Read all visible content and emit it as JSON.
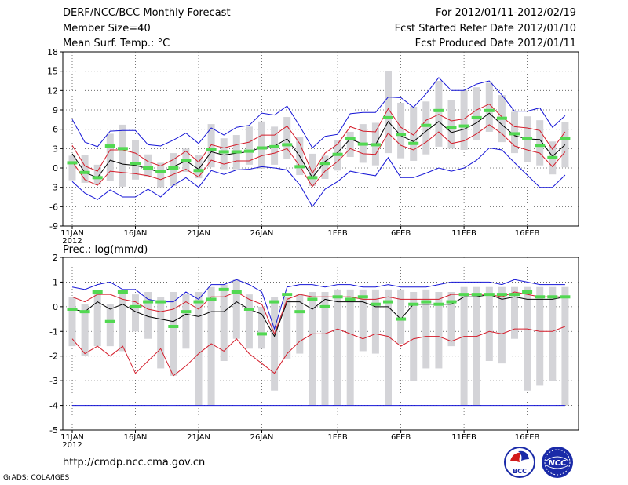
{
  "header": {
    "title": "DERF/NCC/BCC Monthly Forecast",
    "member": "Member Size=40",
    "variable": "Mean Surf. Temp.: °C",
    "period": "For 2012/01/11-2012/02/19",
    "started": "Fcst Started Refer Date 2012/01/10",
    "produced": "Fcst Produced Date 2012/01/11"
  },
  "footer": {
    "url": "http://cmdp.ncc.cma.gov.cn",
    "credit": "GrADS: COLA/IGES",
    "logo_bcc": "BCC",
    "logo_ncc": "NCC"
  },
  "colors": {
    "envelope": "#1515d6",
    "spread": "#d41c2a",
    "mean": "#000000",
    "median": "#52d852",
    "range_bar": "#d4d4d8",
    "grid": "#555555"
  },
  "chart_data": [
    {
      "type": "boxplot-ensemble",
      "label": "Mean Surf. Temp.: °C",
      "ylim": [
        -9,
        18
      ],
      "yticks": [
        -9,
        -6,
        -3,
        0,
        3,
        6,
        9,
        12,
        15,
        18
      ],
      "xticks": [
        {
          "day": 1,
          "label": "11JAN",
          "sub": "2012"
        },
        {
          "day": 6,
          "label": "16JAN"
        },
        {
          "day": 11,
          "label": "21JAN"
        },
        {
          "day": 16,
          "label": "26JAN"
        },
        {
          "day": 22,
          "label": "1FEB"
        },
        {
          "day": 27,
          "label": "6FEB"
        },
        {
          "day": 32,
          "label": "11FEB"
        },
        {
          "day": 37,
          "label": "16FEB"
        }
      ],
      "days": [
        1,
        2,
        3,
        4,
        5,
        6,
        7,
        8,
        9,
        10,
        11,
        12,
        13,
        14,
        15,
        16,
        17,
        18,
        19,
        20,
        21,
        22,
        23,
        24,
        25,
        26,
        27,
        28,
        29,
        30,
        31,
        32,
        33,
        34,
        35,
        36,
        37,
        38,
        39,
        40
      ],
      "series": [
        {
          "name": "max",
          "values": [
            7.5,
            4.0,
            3.3,
            5.7,
            5.8,
            5.8,
            3.6,
            3.4,
            4.3,
            5.4,
            3.8,
            6.2,
            5.1,
            6.3,
            6.6,
            8.5,
            8.2,
            9.6,
            6.5,
            3.1,
            4.9,
            5.2,
            8.4,
            8.6,
            8.6,
            11.0,
            10.9,
            9.4,
            11.5,
            14.0,
            12.0,
            12.0,
            13.0,
            13.5,
            11.3,
            8.8,
            8.8,
            9.3,
            6.3,
            8.1
          ]
        },
        {
          "name": "upper",
          "values": [
            3.5,
            0.3,
            -0.5,
            2.8,
            2.8,
            2.3,
            1.0,
            0.3,
            1.3,
            2.6,
            0.9,
            3.6,
            3.1,
            3.6,
            4.0,
            5.1,
            5.1,
            6.5,
            3.8,
            -0.8,
            2.3,
            3.7,
            6.4,
            5.7,
            5.6,
            9.2,
            6.3,
            5.1,
            7.4,
            8.3,
            7.3,
            7.6,
            9.0,
            9.9,
            7.9,
            6.4,
            6.2,
            5.8,
            2.9,
            5.6
          ]
        },
        {
          "name": "mean",
          "values": [
            2.2,
            -0.7,
            -1.5,
            1.2,
            0.6,
            0.4,
            -0.1,
            -0.7,
            0.2,
            1.1,
            -0.2,
            2.5,
            2.0,
            2.3,
            2.5,
            3.2,
            3.4,
            4.5,
            1.8,
            -1.5,
            1.0,
            2.4,
            4.5,
            3.7,
            3.6,
            7.2,
            5.0,
            4.1,
            5.7,
            7.2,
            5.5,
            6.0,
            7.0,
            8.5,
            6.7,
            5.0,
            4.5,
            4.4,
            1.8,
            3.6
          ]
        },
        {
          "name": "lower",
          "values": [
            1.0,
            -1.8,
            -2.7,
            -0.5,
            -0.7,
            -0.9,
            -1.2,
            -1.8,
            -1.0,
            -0.2,
            -1.4,
            1.2,
            0.6,
            1.1,
            1.1,
            1.9,
            2.3,
            3.0,
            0.3,
            -2.9,
            -0.5,
            1.0,
            3.0,
            2.2,
            2.1,
            5.4,
            3.5,
            2.8,
            4.0,
            5.6,
            3.8,
            4.2,
            5.3,
            6.7,
            5.3,
            3.4,
            2.8,
            2.3,
            0.2,
            2.5
          ]
        },
        {
          "name": "min",
          "values": [
            -2.1,
            -3.9,
            -4.9,
            -3.4,
            -4.5,
            -4.5,
            -3.3,
            -4.5,
            -2.7,
            -1.5,
            -3.0,
            -0.4,
            -1.0,
            -0.3,
            -0.2,
            0.2,
            0.0,
            -0.3,
            -2.6,
            -6.0,
            -3.3,
            -2.1,
            -0.5,
            -0.9,
            -1.2,
            1.6,
            -1.5,
            -1.5,
            -0.8,
            0.0,
            -0.5,
            0.0,
            1.2,
            3.1,
            2.8,
            0.8,
            -1.1,
            -3.0,
            -3.0,
            -1.1
          ]
        },
        {
          "name": "median",
          "values": [
            0.8,
            -0.7,
            -1.5,
            3.4,
            3.0,
            0.7,
            0.0,
            -0.6,
            0.0,
            1.1,
            -0.4,
            2.8,
            2.5,
            2.5,
            2.6,
            3.1,
            3.3,
            3.6,
            0.2,
            -1.5,
            0.7,
            2.1,
            4.5,
            3.7,
            3.6,
            7.8,
            5.2,
            3.8,
            6.6,
            8.9,
            6.3,
            6.5,
            7.8,
            8.9,
            7.7,
            5.3,
            4.6,
            3.5,
            1.6,
            4.6
          ]
        },
        {
          "name": "bar_top",
          "values": [
            1.9,
            2.0,
            0.5,
            5.3,
            6.7,
            4.3,
            2.1,
            0.8,
            2.3,
            3.0,
            2.0,
            6.8,
            4.6,
            5.1,
            6.4,
            7.2,
            6.4,
            7.9,
            4.8,
            2.2,
            1.9,
            4.3,
            5.6,
            6.8,
            7.0,
            15.0,
            10.1,
            9.5,
            10.3,
            13.5,
            10.5,
            12.0,
            12.5,
            13.2,
            11.3,
            8.7,
            8.0,
            7.4,
            4.1,
            7.1
          ]
        },
        {
          "name": "bar_bottom",
          "values": [
            -1.9,
            -2.3,
            -2.6,
            -2.0,
            -2.9,
            -1.8,
            -1.3,
            -3.0,
            -2.8,
            -0.6,
            -1.6,
            0.1,
            -0.2,
            -0.2,
            0.5,
            -0.1,
            0.5,
            1.4,
            -1.1,
            -2.8,
            -1.7,
            -0.4,
            1.7,
            0.8,
            0.4,
            2.3,
            1.5,
            1.1,
            2.1,
            3.3,
            3.0,
            2.8,
            4.3,
            5.6,
            4.0,
            2.3,
            0.9,
            0.4,
            -1.0,
            0.1
          ]
        }
      ]
    },
    {
      "type": "boxplot-ensemble",
      "label": "Prec.: log(mm/d)",
      "ylim": [
        -5,
        2
      ],
      "yticks": [
        -5,
        -4,
        -3,
        -2,
        -1,
        0,
        1,
        2
      ],
      "xticks": [
        {
          "day": 1,
          "label": "11JAN",
          "sub": "2012"
        },
        {
          "day": 6,
          "label": "16JAN"
        },
        {
          "day": 11,
          "label": "21JAN"
        },
        {
          "day": 16,
          "label": "26JAN"
        },
        {
          "day": 22,
          "label": "1FEB"
        },
        {
          "day": 27,
          "label": "6FEB"
        },
        {
          "day": 32,
          "label": "11FEB"
        },
        {
          "day": 37,
          "label": "16FEB"
        }
      ],
      "days": [
        1,
        2,
        3,
        4,
        5,
        6,
        7,
        8,
        9,
        10,
        11,
        12,
        13,
        14,
        15,
        16,
        17,
        18,
        19,
        20,
        21,
        22,
        23,
        24,
        25,
        26,
        27,
        28,
        29,
        30,
        31,
        32,
        33,
        34,
        35,
        36,
        37,
        38,
        39,
        40
      ],
      "series": [
        {
          "name": "max",
          "values": [
            0.8,
            0.7,
            0.9,
            1.0,
            0.7,
            0.7,
            0.3,
            0.2,
            0.2,
            0.6,
            0.3,
            0.9,
            0.9,
            1.1,
            0.9,
            0.6,
            -0.9,
            0.8,
            0.9,
            0.9,
            0.8,
            0.9,
            0.9,
            0.8,
            0.8,
            0.9,
            0.8,
            0.8,
            0.8,
            0.9,
            1.0,
            1.0,
            1.0,
            1.0,
            0.9,
            1.1,
            1.0,
            0.9,
            0.9,
            0.9
          ]
        },
        {
          "name": "upper",
          "values": [
            0.4,
            0.2,
            0.5,
            0.5,
            0.3,
            0.2,
            -0.1,
            -0.2,
            -0.1,
            0.2,
            -0.1,
            0.4,
            0.4,
            0.6,
            0.3,
            0.1,
            -1.1,
            0.3,
            0.5,
            0.4,
            0.4,
            0.4,
            0.4,
            0.3,
            0.3,
            0.4,
            0.3,
            0.3,
            0.3,
            0.3,
            0.5,
            0.5,
            0.5,
            0.5,
            0.4,
            0.6,
            0.5,
            0.4,
            0.4,
            0.4
          ]
        },
        {
          "name": "mean",
          "values": [
            -0.1,
            -0.2,
            0.2,
            -0.1,
            0.1,
            -0.2,
            -0.4,
            -0.5,
            -0.6,
            -0.3,
            -0.4,
            -0.2,
            -0.2,
            0.2,
            -0.1,
            -0.3,
            -1.2,
            0.2,
            0.2,
            -0.1,
            0.3,
            0.2,
            0.2,
            0.2,
            0.0,
            0.0,
            -0.5,
            0.1,
            0.1,
            0.1,
            0.1,
            0.4,
            0.4,
            0.5,
            0.3,
            0.4,
            0.3,
            0.3,
            0.3,
            0.4
          ]
        },
        {
          "name": "lower",
          "values": [
            -1.3,
            -1.9,
            -1.6,
            -2.0,
            -1.6,
            -2.7,
            -2.2,
            -1.7,
            -2.8,
            -2.4,
            -1.9,
            -1.5,
            -1.8,
            -1.3,
            -1.9,
            -2.3,
            -2.7,
            -1.9,
            -1.4,
            -1.1,
            -1.1,
            -0.9,
            -1.1,
            -1.3,
            -1.1,
            -1.2,
            -1.6,
            -1.3,
            -1.2,
            -1.2,
            -1.4,
            -1.2,
            -1.2,
            -1.0,
            -1.1,
            -0.9,
            -0.9,
            -1.0,
            -1.0,
            -0.8
          ]
        },
        {
          "name": "min",
          "values": [
            -4.0,
            -4.0,
            -4.0,
            -4.0,
            -4.0,
            -4.0,
            -4.0,
            -4.0,
            -4.0,
            -4.0,
            -4.0,
            -4.0,
            -4.0,
            -4.0,
            -4.0,
            -4.0,
            -4.0,
            -4.0,
            -4.0,
            -4.0,
            -4.0,
            -4.0,
            -4.0,
            -4.0,
            -4.0,
            -4.0,
            -4.0,
            -4.0,
            -4.0,
            -4.0,
            -4.0,
            -4.0,
            -4.0,
            -4.0,
            -4.0,
            -4.0,
            -4.0,
            -4.0,
            -4.0,
            -4.0
          ]
        },
        {
          "name": "median",
          "values": [
            -0.1,
            -0.2,
            0.6,
            -0.6,
            0.6,
            0.0,
            0.2,
            0.2,
            -0.8,
            -0.2,
            0.2,
            0.3,
            0.7,
            0.6,
            -0.1,
            -1.1,
            0.2,
            0.5,
            -0.2,
            0.3,
            0.0,
            0.4,
            0.3,
            0.4,
            0.1,
            0.2,
            -0.5,
            0.1,
            0.2,
            0.1,
            0.2,
            0.5,
            0.5,
            0.5,
            0.5,
            0.5,
            0.6,
            0.4,
            0.4,
            0.4
          ]
        },
        {
          "name": "bar_top",
          "values": [
            0.4,
            0.1,
            0.6,
            0.1,
            0.7,
            0.5,
            0.6,
            0.4,
            0.6,
            0.5,
            0.6,
            0.8,
            0.9,
            1.1,
            0.5,
            0.0,
            0.4,
            0.4,
            0.5,
            0.6,
            0.6,
            0.7,
            0.7,
            0.7,
            0.7,
            0.7,
            0.7,
            0.6,
            0.7,
            0.6,
            0.6,
            0.8,
            0.8,
            0.8,
            0.8,
            0.8,
            0.8,
            0.8,
            0.8,
            0.8
          ]
        },
        {
          "name": "bar_bottom",
          "values": [
            -1.6,
            -2.0,
            -1.6,
            -1.6,
            -1.8,
            -1.0,
            -1.3,
            -2.5,
            -2.8,
            -1.7,
            -4.0,
            -4.0,
            -2.2,
            -1.3,
            -1.7,
            -1.7,
            -3.4,
            -2.1,
            -1.9,
            -4.0,
            -4.0,
            -4.0,
            -4.0,
            -1.8,
            -1.9,
            -4.0,
            -1.5,
            -3.0,
            -2.5,
            -2.5,
            -1.6,
            -4.0,
            -4.0,
            -2.2,
            -2.3,
            -1.3,
            -3.4,
            -3.2,
            -3.0,
            -4.0
          ]
        }
      ]
    }
  ]
}
